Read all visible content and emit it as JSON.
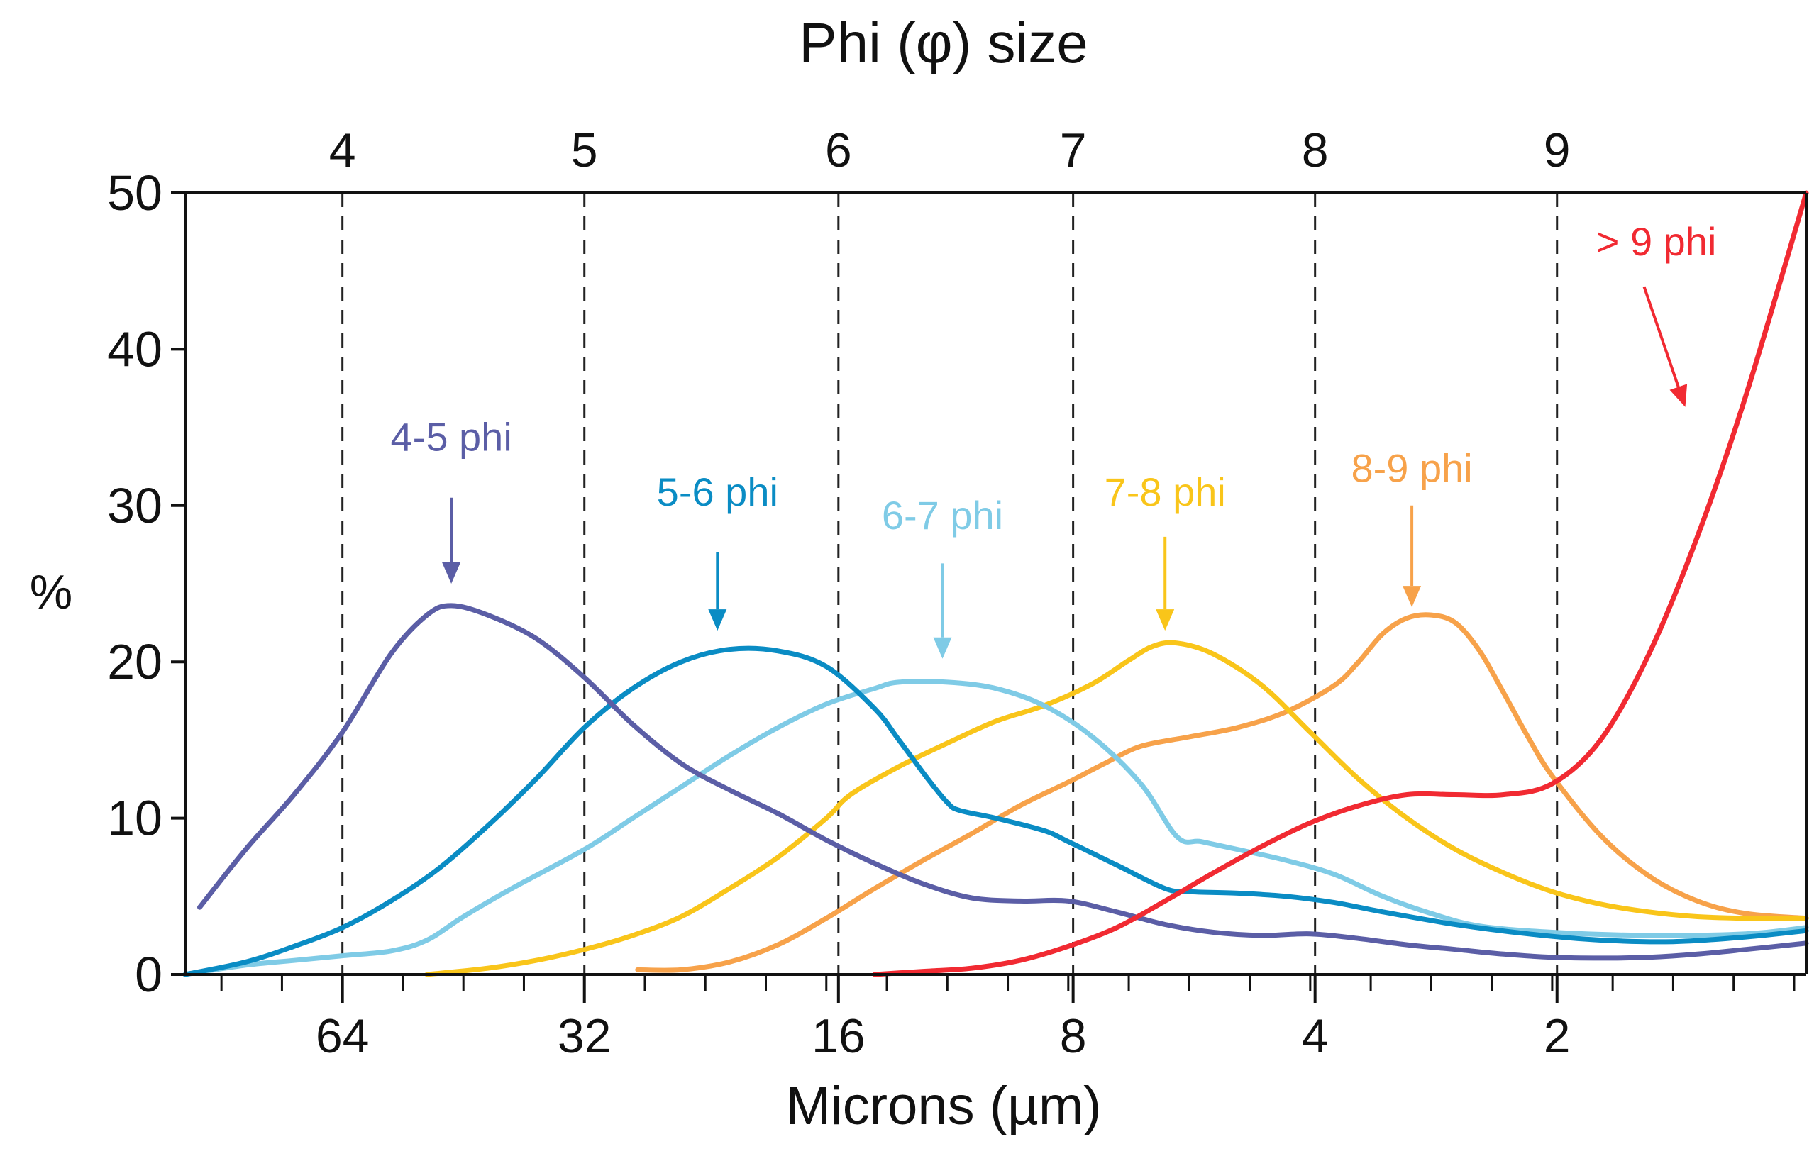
{
  "chart_data": {
    "type": "line",
    "title": "Phi (φ) size",
    "xlabel": "Microns (µm)",
    "ylabel": "%",
    "ylim": [
      0,
      50
    ],
    "xlim_phi": [
      3.35,
      10.05
    ],
    "x_scale": "phi (log2 microns)",
    "y_ticks": [
      "0",
      "10",
      "20",
      "30",
      "40",
      "50"
    ],
    "y_tick_values": [
      0,
      10,
      20,
      30,
      40,
      50
    ],
    "top_ticks": [
      {
        "phi": 4,
        "label": "4"
      },
      {
        "phi": 5,
        "label": "5"
      },
      {
        "phi": 6.05,
        "label": "6"
      },
      {
        "phi": 7.02,
        "label": "7"
      },
      {
        "phi": 8.02,
        "label": "8"
      },
      {
        "phi": 9.02,
        "label": "9"
      }
    ],
    "dashed_lines_phi": [
      4,
      5,
      6.05,
      7.02,
      8.02,
      9.02
    ],
    "bottom_tick_labels": [
      {
        "phi": 4,
        "label": "64"
      },
      {
        "phi": 5,
        "label": "32"
      },
      {
        "phi": 6.05,
        "label": "16"
      },
      {
        "phi": 7.02,
        "label": "8"
      },
      {
        "phi": 8.02,
        "label": "4"
      },
      {
        "phi": 9.02,
        "label": "2"
      }
    ],
    "series": [
      {
        "name": "4-5 phi",
        "label": "4-5 phi",
        "color": "#5b5ea6",
        "arrow_label_phi": 4.45,
        "arrow_label_y": 33.5,
        "arrow_from_y": 30.5,
        "arrow_to_y": 25.0,
        "arrow_from_phi": 4.45,
        "arrow_to_phi": 4.45,
        "points": [
          [
            3.41,
            4.3
          ],
          [
            3.6,
            8
          ],
          [
            3.8,
            11.5
          ],
          [
            4.0,
            15.5
          ],
          [
            4.2,
            20.5
          ],
          [
            4.35,
            23.0
          ],
          [
            4.45,
            23.6
          ],
          [
            4.6,
            23.0
          ],
          [
            4.8,
            21.5
          ],
          [
            5.0,
            19.0
          ],
          [
            5.2,
            16.0
          ],
          [
            5.4,
            13.5
          ],
          [
            5.6,
            11.8
          ],
          [
            5.8,
            10.3
          ],
          [
            6.0,
            8.6
          ],
          [
            6.2,
            7.1
          ],
          [
            6.4,
            5.8
          ],
          [
            6.6,
            4.9
          ],
          [
            6.8,
            4.7
          ],
          [
            7.0,
            4.7
          ],
          [
            7.2,
            4.0
          ],
          [
            7.4,
            3.2
          ],
          [
            7.6,
            2.7
          ],
          [
            7.8,
            2.5
          ],
          [
            8.0,
            2.6
          ],
          [
            8.2,
            2.3
          ],
          [
            8.4,
            1.9
          ],
          [
            8.6,
            1.6
          ],
          [
            8.8,
            1.3
          ],
          [
            9.0,
            1.1
          ],
          [
            9.2,
            1.05
          ],
          [
            9.4,
            1.1
          ],
          [
            9.6,
            1.3
          ],
          [
            9.8,
            1.6
          ],
          [
            10.05,
            2.0
          ]
        ]
      },
      {
        "name": "5-6 phi",
        "label": "5-6 phi",
        "color": "#0a8cc4",
        "arrow_label_phi": 5.55,
        "arrow_label_y": 30.0,
        "arrow_from_y": 27.0,
        "arrow_to_y": 22.0,
        "arrow_from_phi": 5.55,
        "arrow_to_phi": 5.55,
        "points": [
          [
            3.35,
            0
          ],
          [
            3.6,
            0.8
          ],
          [
            3.8,
            1.8
          ],
          [
            4.0,
            3.0
          ],
          [
            4.2,
            4.7
          ],
          [
            4.4,
            6.8
          ],
          [
            4.6,
            9.5
          ],
          [
            4.8,
            12.5
          ],
          [
            5.0,
            15.8
          ],
          [
            5.2,
            18.3
          ],
          [
            5.4,
            20.0
          ],
          [
            5.6,
            20.8
          ],
          [
            5.8,
            20.7
          ],
          [
            6.0,
            19.7
          ],
          [
            6.2,
            17.0
          ],
          [
            6.3,
            15.0
          ],
          [
            6.42,
            12.5
          ],
          [
            6.5,
            11.0
          ],
          [
            6.55,
            10.5
          ],
          [
            6.7,
            10.0
          ],
          [
            6.9,
            9.2
          ],
          [
            7.0,
            8.5
          ],
          [
            7.2,
            7.0
          ],
          [
            7.4,
            5.5
          ],
          [
            7.5,
            5.3
          ],
          [
            7.7,
            5.2
          ],
          [
            7.9,
            5.0
          ],
          [
            8.1,
            4.6
          ],
          [
            8.3,
            4.0
          ],
          [
            8.6,
            3.2
          ],
          [
            8.9,
            2.6
          ],
          [
            9.2,
            2.2
          ],
          [
            9.5,
            2.1
          ],
          [
            9.8,
            2.4
          ],
          [
            10.05,
            2.8
          ]
        ]
      },
      {
        "name": "6-7 phi",
        "label": "6-7 phi",
        "color": "#7fcbe6",
        "arrow_label_phi": 6.48,
        "arrow_label_y": 28.5,
        "arrow_from_y": 26.3,
        "arrow_to_y": 20.2,
        "arrow_from_phi": 6.48,
        "arrow_to_phi": 6.48,
        "points": [
          [
            3.35,
            0
          ],
          [
            3.6,
            0.6
          ],
          [
            3.8,
            0.9
          ],
          [
            4.0,
            1.2
          ],
          [
            4.2,
            1.5
          ],
          [
            4.35,
            2.2
          ],
          [
            4.5,
            3.7
          ],
          [
            4.7,
            5.5
          ],
          [
            5.0,
            8.0
          ],
          [
            5.2,
            10.0
          ],
          [
            5.4,
            12.0
          ],
          [
            5.6,
            14.0
          ],
          [
            5.8,
            15.8
          ],
          [
            6.0,
            17.3
          ],
          [
            6.2,
            18.3
          ],
          [
            6.3,
            18.7
          ],
          [
            6.5,
            18.7
          ],
          [
            6.7,
            18.3
          ],
          [
            6.9,
            17.2
          ],
          [
            7.1,
            15.2
          ],
          [
            7.3,
            12.2
          ],
          [
            7.45,
            8.8
          ],
          [
            7.55,
            8.5
          ],
          [
            7.7,
            8.0
          ],
          [
            7.9,
            7.3
          ],
          [
            8.1,
            6.4
          ],
          [
            8.3,
            5.0
          ],
          [
            8.5,
            3.9
          ],
          [
            8.7,
            3.1
          ],
          [
            9.0,
            2.7
          ],
          [
            9.4,
            2.5
          ],
          [
            9.8,
            2.6
          ],
          [
            10.05,
            3.0
          ]
        ]
      },
      {
        "name": "7-8 phi",
        "label": "7-8 phi",
        "color": "#f9c51a",
        "arrow_label_phi": 7.4,
        "arrow_label_y": 30.0,
        "arrow_from_y": 28.0,
        "arrow_to_y": 22.0,
        "arrow_from_phi": 7.4,
        "arrow_to_phi": 7.4,
        "points": [
          [
            4.35,
            0
          ],
          [
            4.6,
            0.4
          ],
          [
            4.8,
            0.9
          ],
          [
            5.0,
            1.6
          ],
          [
            5.2,
            2.5
          ],
          [
            5.4,
            3.7
          ],
          [
            5.6,
            5.5
          ],
          [
            5.8,
            7.5
          ],
          [
            6.0,
            10.0
          ],
          [
            6.1,
            11.5
          ],
          [
            6.3,
            13.3
          ],
          [
            6.5,
            14.8
          ],
          [
            6.7,
            16.2
          ],
          [
            6.9,
            17.2
          ],
          [
            7.1,
            18.6
          ],
          [
            7.25,
            20.1
          ],
          [
            7.35,
            21.0
          ],
          [
            7.45,
            21.2
          ],
          [
            7.6,
            20.5
          ],
          [
            7.8,
            18.5
          ],
          [
            8.0,
            15.5
          ],
          [
            8.2,
            12.5
          ],
          [
            8.4,
            10.0
          ],
          [
            8.6,
            8.0
          ],
          [
            8.8,
            6.5
          ],
          [
            9.0,
            5.3
          ],
          [
            9.2,
            4.5
          ],
          [
            9.4,
            4.0
          ],
          [
            9.6,
            3.7
          ],
          [
            9.8,
            3.6
          ],
          [
            10.05,
            3.6
          ]
        ]
      },
      {
        "name": "8-9 phi",
        "label": "8-9 phi",
        "color": "#f7a24a",
        "arrow_label_phi": 8.42,
        "arrow_label_y": 31.5,
        "arrow_from_y": 30.0,
        "arrow_to_y": 23.5,
        "arrow_from_phi": 8.42,
        "arrow_to_phi": 8.42,
        "points": [
          [
            5.22,
            0.3
          ],
          [
            5.4,
            0.3
          ],
          [
            5.6,
            0.8
          ],
          [
            5.8,
            1.9
          ],
          [
            6.0,
            3.6
          ],
          [
            6.2,
            5.5
          ],
          [
            6.4,
            7.3
          ],
          [
            6.6,
            9.0
          ],
          [
            6.8,
            10.8
          ],
          [
            7.0,
            12.3
          ],
          [
            7.15,
            13.5
          ],
          [
            7.3,
            14.6
          ],
          [
            7.5,
            15.2
          ],
          [
            7.7,
            15.8
          ],
          [
            7.9,
            16.8
          ],
          [
            8.1,
            18.5
          ],
          [
            8.2,
            20.0
          ],
          [
            8.3,
            21.8
          ],
          [
            8.4,
            22.8
          ],
          [
            8.5,
            23.0
          ],
          [
            8.6,
            22.5
          ],
          [
            8.7,
            20.7
          ],
          [
            8.8,
            18.0
          ],
          [
            8.9,
            15.2
          ],
          [
            9.0,
            12.7
          ],
          [
            9.2,
            8.9
          ],
          [
            9.4,
            6.3
          ],
          [
            9.6,
            4.7
          ],
          [
            9.8,
            3.9
          ],
          [
            10.05,
            3.6
          ]
        ]
      },
      {
        "name": "> 9 phi",
        "label": "> 9 phi",
        "color": "#f12a32",
        "arrow_label_phi": 9.43,
        "arrow_label_y": 46.0,
        "arrow_from_y": 44.0,
        "arrow_to_y": 36.3,
        "arrow_from_phi": 9.38,
        "arrow_to_phi": 9.55,
        "points": [
          [
            6.2,
            0
          ],
          [
            6.4,
            0.2
          ],
          [
            6.6,
            0.4
          ],
          [
            6.8,
            0.9
          ],
          [
            7.0,
            1.8
          ],
          [
            7.2,
            3.0
          ],
          [
            7.4,
            4.7
          ],
          [
            7.6,
            6.5
          ],
          [
            7.8,
            8.2
          ],
          [
            8.0,
            9.7
          ],
          [
            8.2,
            10.8
          ],
          [
            8.4,
            11.5
          ],
          [
            8.6,
            11.5
          ],
          [
            8.8,
            11.5
          ],
          [
            9.0,
            12.2
          ],
          [
            9.2,
            15.0
          ],
          [
            9.4,
            20.5
          ],
          [
            9.6,
            28.0
          ],
          [
            9.8,
            37.0
          ],
          [
            10.05,
            50.0
          ]
        ]
      }
    ]
  }
}
